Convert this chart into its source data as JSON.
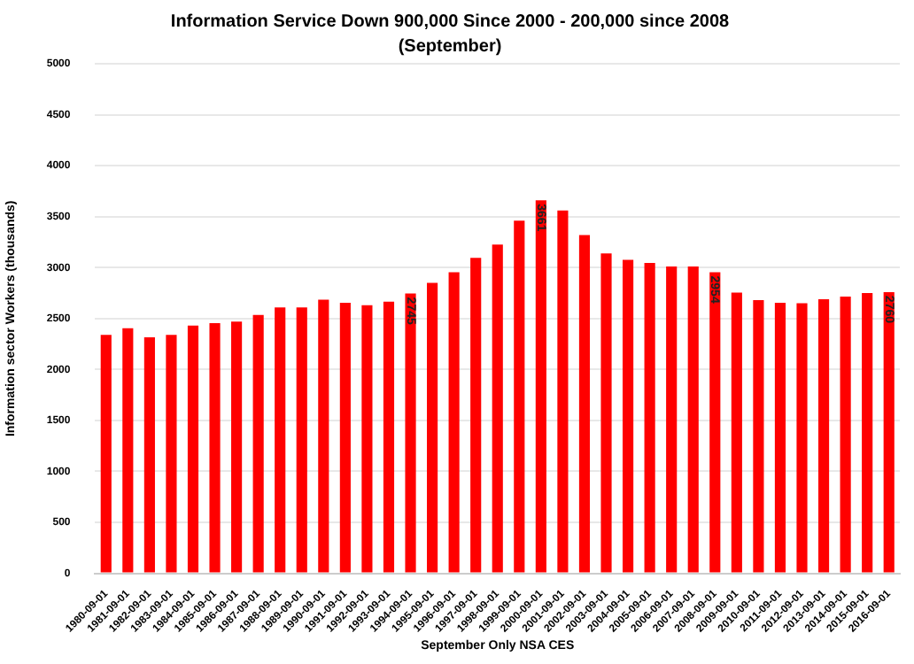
{
  "chart_data": {
    "type": "bar",
    "title": "Information Service Down 900,000 Since 2000 - 200,000 since 2008",
    "subtitle": "(September)",
    "xlabel": "September Only NSA CES",
    "ylabel": "Information sector Workers (thousands)",
    "categories": [
      "1980-09-01",
      "1981-09-01",
      "1982-09-01",
      "1983-09-01",
      "1984-09-01",
      "1985-09-01",
      "1986-09-01",
      "1987-09-01",
      "1988-09-01",
      "1989-09-01",
      "1990-09-01",
      "1991-09-01",
      "1992-09-01",
      "1993-09-01",
      "1994-09-01",
      "1995-09-01",
      "1996-09-01",
      "1997-09-01",
      "1998-09-01",
      "1999-09-01",
      "2000-09-01",
      "2001-09-01",
      "2002-09-01",
      "2003-09-01",
      "2004-09-01",
      "2005-09-01",
      "2006-09-01",
      "2007-09-01",
      "2008-09-01",
      "2009-09-01",
      "2010-09-01",
      "2011-09-01",
      "2012-09-01",
      "2013-09-01",
      "2014-09-01",
      "2015-09-01",
      "2016-09-01"
    ],
    "values": [
      2340,
      2405,
      2315,
      2340,
      2430,
      2455,
      2470,
      2535,
      2610,
      2610,
      2685,
      2655,
      2630,
      2665,
      2745,
      2850,
      2955,
      3095,
      3225,
      3460,
      3661,
      3560,
      3320,
      3140,
      3075,
      3045,
      3010,
      3010,
      2954,
      2755,
      2680,
      2655,
      2650,
      2690,
      2715,
      2750,
      2760
    ],
    "value_labels": [
      null,
      null,
      null,
      null,
      null,
      null,
      null,
      null,
      null,
      null,
      null,
      null,
      null,
      null,
      "2745",
      null,
      null,
      null,
      null,
      null,
      "3661",
      null,
      null,
      null,
      null,
      null,
      null,
      null,
      "2954",
      null,
      null,
      null,
      null,
      null,
      null,
      null,
      "2760"
    ],
    "color": "#ff0000",
    "ylim": [
      0,
      5000
    ],
    "yticks": [
      0,
      500,
      1000,
      1500,
      2000,
      2500,
      3000,
      3500,
      4000,
      4500,
      5000
    ],
    "grid": "y",
    "legend": false
  }
}
